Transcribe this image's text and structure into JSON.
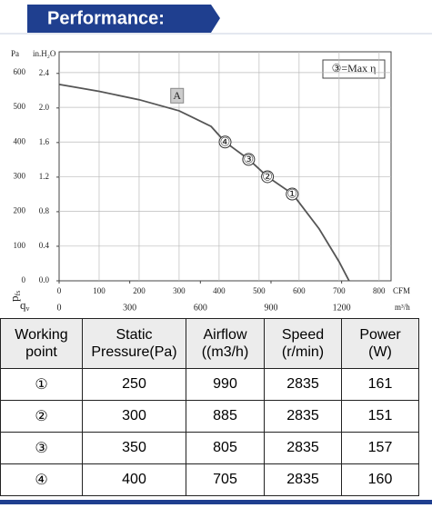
{
  "header": {
    "title": "Performance:"
  },
  "chart_data": {
    "type": "line",
    "y_unit": "Pa",
    "y2_unit": "in.H₂O",
    "x_unit": "CFM",
    "x2_unit": "m³/h",
    "y_symbol": "p",
    "y_symbol_sub": "fs",
    "x_symbol": "q",
    "x_symbol_sub": "v",
    "note": "③=Max η",
    "annotations": [
      {
        "text": "A",
        "x": 295
      }
    ],
    "x": [
      0,
      100,
      200,
      300,
      380,
      415,
      474,
      521,
      584,
      650,
      700,
      725
    ],
    "series": [
      {
        "name": "Static pressure",
        "color": "#555555",
        "values": [
          566,
          546,
          522,
          490,
          445,
          400,
          350,
          300,
          250,
          150,
          55,
          0
        ]
      }
    ],
    "xlim": [
      0,
      830
    ],
    "xticks": [
      0,
      100,
      200,
      300,
      400,
      500,
      600,
      700,
      800
    ],
    "x2lim": [
      0,
      1410
    ],
    "x2ticks": [
      0,
      300,
      600,
      900,
      1200
    ],
    "ylim": [
      0,
      660
    ],
    "yticks": [
      0,
      100,
      200,
      300,
      400,
      500,
      600
    ],
    "y2lim": [
      0,
      2.65
    ],
    "y2ticks": [
      {
        "value": 0,
        "label": "0.0"
      },
      0.4,
      0.8,
      1.2,
      1.6,
      {
        "value": 2,
        "label": "2.0"
      },
      2.4
    ],
    "grid": true
  },
  "table": {
    "headers": [
      "Working\npoint",
      "Static\nPressure(Pa)",
      "Airflow\n((m3/h)",
      "Speed\n(r/min)",
      "Power\n(W)"
    ],
    "rows": [
      [
        "①",
        250,
        990,
        2835,
        161
      ],
      [
        "②",
        300,
        885,
        2835,
        151
      ],
      [
        "③",
        350,
        805,
        2835,
        157
      ],
      [
        "④",
        400,
        705,
        2835,
        160
      ]
    ]
  }
}
